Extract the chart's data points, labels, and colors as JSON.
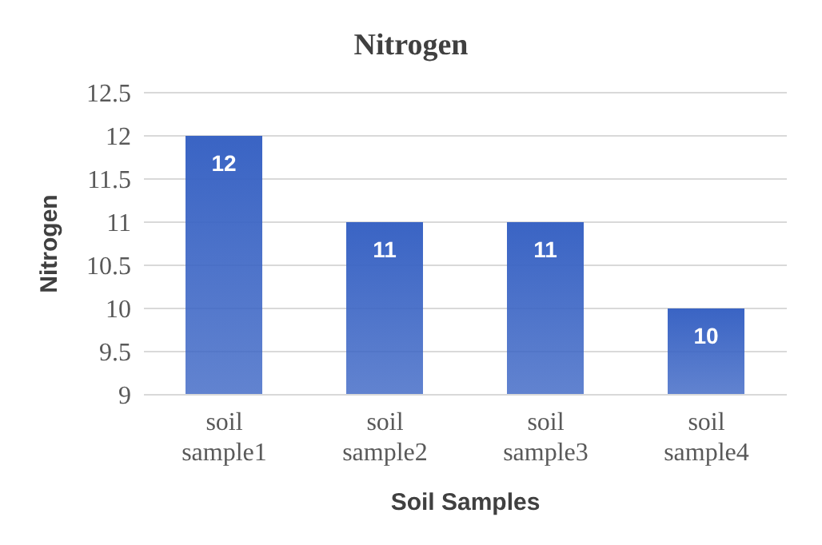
{
  "chart_data": {
    "type": "bar",
    "title": "Nitrogen",
    "xlabel": "Soil Samples",
    "ylabel": "Nitrogen",
    "categories": [
      "soil sample1",
      "soil sample2",
      "soil sample3",
      "soil sample4"
    ],
    "values": [
      12,
      11,
      11,
      10
    ],
    "color": "#3a64c4",
    "ylim": [
      9,
      12.5
    ],
    "yticks": [
      9,
      9.5,
      10,
      10.5,
      11,
      11.5,
      12,
      12.5
    ],
    "grid": "y",
    "data_labels": true
  }
}
